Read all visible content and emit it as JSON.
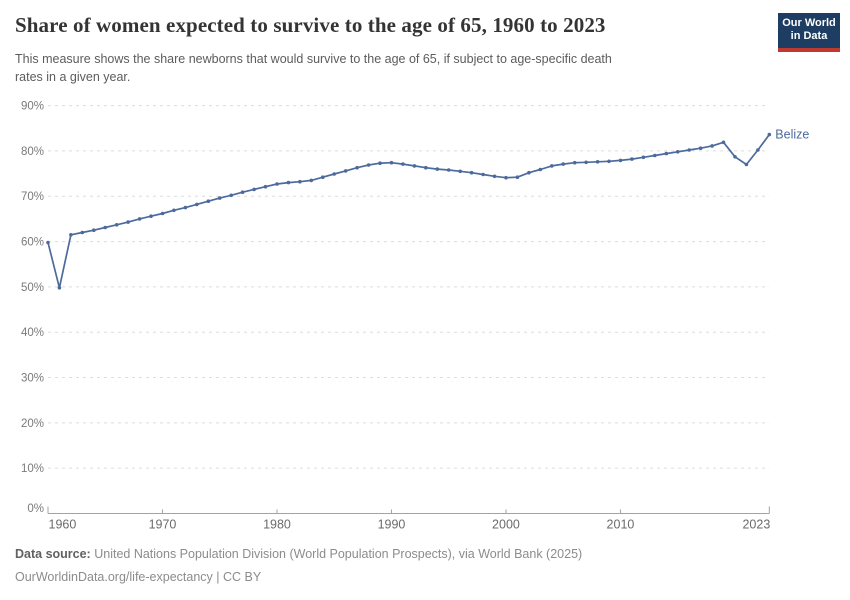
{
  "header": {
    "title": "Share of women expected to survive to the age of 65, 1960 to 2023",
    "subtitle_lines": [
      "This measure shows the share newborns that would survive to the age of 65, if subject to age-specific death",
      "rates in a given year."
    ],
    "logo": {
      "line1": "Our World",
      "line2": "in Data",
      "bg_color": "#1d3d63",
      "stripe_color": "#c0392f"
    }
  },
  "chart_data": {
    "type": "line",
    "title": "Share of women expected to survive to the age of 65, 1960 to 2023",
    "xlabel": "",
    "ylabel": "",
    "ylim": [
      0,
      90
    ],
    "yticks": [
      0,
      10,
      20,
      30,
      40,
      50,
      60,
      70,
      80,
      90
    ],
    "ytick_suffix": "%",
    "xticks": [
      1960,
      1970,
      1980,
      1990,
      2000,
      2010,
      2023
    ],
    "grid": "horizontal-dashed",
    "legend": "end-of-line-label",
    "series": [
      {
        "name": "Belize",
        "color": "#4c6a9c",
        "x": [
          1960,
          1961,
          1962,
          1963,
          1964,
          1965,
          1966,
          1967,
          1968,
          1969,
          1970,
          1971,
          1972,
          1973,
          1974,
          1975,
          1976,
          1977,
          1978,
          1979,
          1980,
          1981,
          1982,
          1983,
          1984,
          1985,
          1986,
          1987,
          1988,
          1989,
          1990,
          1991,
          1992,
          1993,
          1994,
          1995,
          1996,
          1997,
          1998,
          1999,
          2000,
          2001,
          2002,
          2003,
          2004,
          2005,
          2006,
          2007,
          2008,
          2009,
          2010,
          2011,
          2012,
          2013,
          2014,
          2015,
          2016,
          2017,
          2018,
          2019,
          2020,
          2021,
          2022,
          2023
        ],
        "values": [
          59.8,
          49.8,
          61.5,
          62.0,
          62.5,
          63.1,
          63.7,
          64.3,
          65.0,
          65.6,
          66.2,
          66.9,
          67.5,
          68.2,
          68.9,
          69.6,
          70.2,
          70.9,
          71.5,
          72.1,
          72.7,
          73.0,
          73.2,
          73.5,
          74.2,
          74.9,
          75.6,
          76.3,
          76.9,
          77.3,
          77.4,
          77.1,
          76.7,
          76.3,
          76.0,
          75.8,
          75.5,
          75.2,
          74.8,
          74.4,
          74.1,
          74.2,
          75.2,
          75.9,
          76.7,
          77.1,
          77.4,
          77.5,
          77.6,
          77.7,
          77.9,
          78.2,
          78.6,
          79.0,
          79.4,
          79.8,
          80.2,
          80.6,
          81.1,
          81.9,
          78.7,
          77.0,
          80.2,
          83.6
        ]
      }
    ]
  },
  "footer": {
    "source_label": "Data source:",
    "source_text": "United Nations Population Division (World Population Prospects), via World Bank (2025)",
    "license_line": "OurWorldinData.org/life-expectancy | CC BY"
  }
}
